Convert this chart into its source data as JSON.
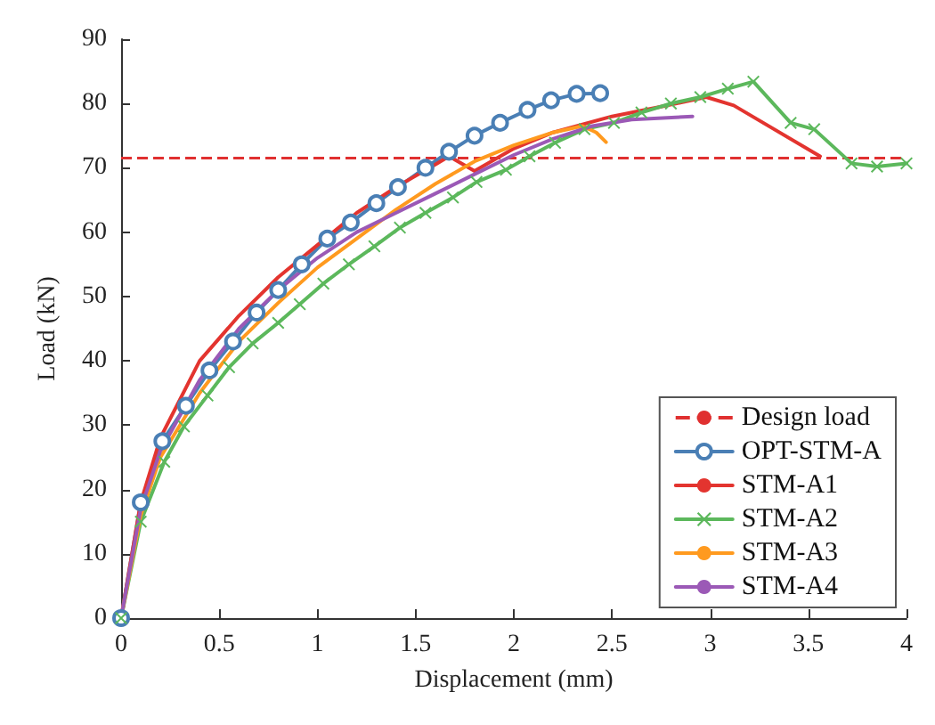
{
  "chart_data": {
    "type": "line",
    "xlabel": "Displacement (mm)",
    "ylabel": "Load (kN)",
    "xlim": [
      0,
      4
    ],
    "xticks": [
      0,
      0.5,
      1,
      1.5,
      2,
      2.5,
      3,
      3.5,
      4
    ],
    "ylim": [
      0,
      90
    ],
    "yticks": [
      0,
      10,
      20,
      30,
      40,
      50,
      60,
      70,
      80,
      90
    ],
    "grid": false,
    "legend": "bottom right",
    "line_style": "solid",
    "ref_lines": [
      {
        "axis": "y",
        "value": 71.5,
        "label": "Design load",
        "color": "#e03030",
        "line_style": "dashed"
      }
    ],
    "series": [
      {
        "name": "OPT-STM-A",
        "color": "#4a7fb5",
        "marker": "circle",
        "x": [
          0,
          0.1,
          0.21,
          0.33,
          0.45,
          0.57,
          0.69,
          0.8,
          0.92,
          1.05,
          1.17,
          1.3,
          1.41,
          1.55,
          1.67,
          1.8,
          1.93,
          2.07,
          2.19,
          2.32,
          2.44
        ],
        "values": [
          0,
          18,
          27.5,
          33,
          38.5,
          43,
          47.5,
          51,
          55,
          59,
          61.5,
          64.5,
          67,
          70,
          72.5,
          75,
          77,
          79,
          80.5,
          81.5,
          81.6
        ]
      },
      {
        "name": "STM-A1",
        "color": "#e3342f",
        "marker": "none",
        "x": [
          0,
          0.1,
          0.2,
          0.4,
          0.6,
          0.8,
          1,
          1.2,
          1.4,
          1.6,
          1.67,
          1.8,
          2,
          2.2,
          2.5,
          2.75,
          2.98,
          3.12,
          3.56
        ],
        "values": [
          0,
          18,
          28,
          40,
          47,
          53,
          58,
          63,
          67,
          70.5,
          71.8,
          69.5,
          73,
          75.5,
          78,
          79.5,
          81,
          79.7,
          71.8
        ]
      },
      {
        "name": "STM-A2",
        "color": "#5cb85c",
        "marker": "cross",
        "x": [
          0,
          0.1,
          0.22,
          0.32,
          0.44,
          0.55,
          0.67,
          0.8,
          0.91,
          1.03,
          1.16,
          1.29,
          1.42,
          1.55,
          1.69,
          1.81,
          1.96,
          2.08,
          2.21,
          2.36,
          2.51,
          2.65,
          2.8,
          2.95,
          3.09,
          3.22,
          3.41,
          3.53,
          3.72,
          3.85,
          4
        ],
        "values": [
          0,
          15,
          24.3,
          29.8,
          34.6,
          39,
          42.7,
          45.9,
          48.8,
          52,
          55,
          57.8,
          60.7,
          63,
          65.4,
          67.8,
          69.7,
          71.8,
          73.9,
          76,
          77,
          78.6,
          80,
          81,
          82.3,
          83.4,
          77,
          76,
          70.7,
          70.2,
          70.7
        ]
      },
      {
        "name": "STM-A3",
        "color": "#ff9a1f",
        "marker": "none",
        "x": [
          0,
          0.1,
          0.2,
          0.4,
          0.6,
          0.8,
          1,
          1.2,
          1.4,
          1.6,
          1.8,
          2,
          2.2,
          2.35,
          2.42,
          2.47
        ],
        "values": [
          0,
          16,
          25,
          35,
          43,
          49,
          54.5,
          59,
          63.5,
          67.5,
          71,
          73.5,
          75.5,
          76.5,
          75.5,
          74
        ]
      },
      {
        "name": "STM-A4",
        "color": "#9b59b6",
        "marker": "none",
        "x": [
          0,
          0.1,
          0.2,
          0.4,
          0.6,
          0.8,
          1,
          1.2,
          1.4,
          1.6,
          1.8,
          2,
          2.2,
          2.4,
          2.6,
          2.91
        ],
        "values": [
          0,
          17,
          26,
          37,
          45,
          51,
          56,
          60,
          63,
          66,
          69,
          72,
          74.5,
          76.5,
          77.5,
          78
        ]
      }
    ]
  }
}
